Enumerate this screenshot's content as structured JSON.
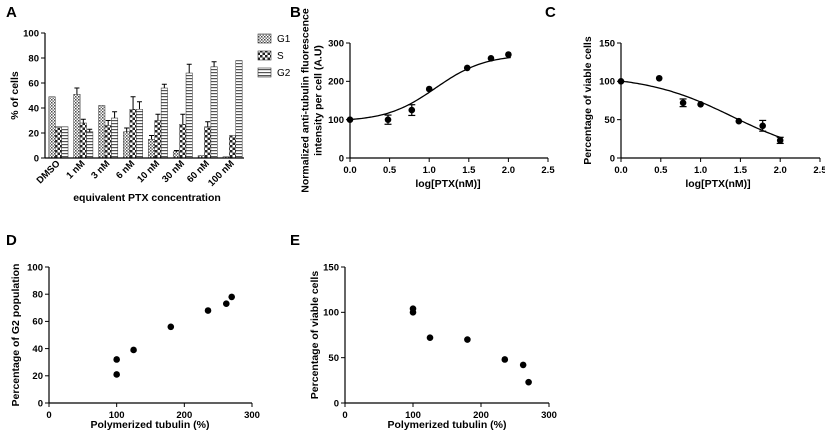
{
  "chart_data": [
    {
      "panel": "A",
      "type": "bar",
      "categories": [
        "DMSO",
        "1 nM",
        "3 nM",
        "6 nM",
        "10 nM",
        "30 nM",
        "60 nM",
        "100 nM"
      ],
      "series": [
        {
          "name": "G1",
          "values": [
            49,
            51,
            42,
            21,
            15,
            5,
            2,
            1
          ],
          "errors": [
            0,
            5,
            0,
            3,
            3,
            1,
            0,
            0
          ]
        },
        {
          "name": "S",
          "values": [
            25,
            28,
            26,
            39,
            30,
            27,
            25,
            18
          ],
          "errors": [
            0,
            3,
            4,
            10,
            5,
            8,
            4,
            0
          ]
        },
        {
          "name": "G2",
          "values": [
            25,
            21,
            32,
            39,
            56,
            68,
            73,
            78
          ],
          "errors": [
            0,
            2,
            5,
            6,
            3,
            7,
            4,
            0
          ]
        }
      ],
      "xlabel": "equivalent PTX concentration",
      "ylabel": "% of cells",
      "ylim": [
        0,
        100
      ],
      "yticks": [
        0,
        20,
        40,
        60,
        80,
        100
      ],
      "legend": "top-right"
    },
    {
      "panel": "B",
      "type": "scatter",
      "x": [
        0.0,
        0.48,
        0.78,
        1.0,
        1.48,
        1.78,
        2.0
      ],
      "y": [
        100,
        100,
        125,
        180,
        235,
        260,
        270
      ],
      "errors": [
        0,
        12,
        14,
        0,
        0,
        0,
        0
      ],
      "fit": "sigmoid",
      "fit_params": {
        "bottom": 95,
        "top": 270,
        "logEC50": 1.08,
        "hill": 1.4
      },
      "xlabel": "log[PTX(nM)]",
      "ylabel": [
        "Normalized anti-tubulin fluorescence",
        "intensity per cell  (A.U)"
      ],
      "xlim": [
        0,
        2.5
      ],
      "ylim": [
        0,
        300
      ],
      "xticks": [
        "0.0",
        "0.5",
        "1.0",
        "1.5",
        "2.0",
        "2.5"
      ],
      "yticks": [
        0,
        100,
        200,
        300
      ]
    },
    {
      "panel": "C",
      "type": "scatter",
      "x": [
        0.0,
        0.48,
        0.78,
        1.0,
        1.48,
        1.78,
        2.0
      ],
      "y": [
        100,
        104,
        72,
        70,
        48,
        42,
        23
      ],
      "errors": [
        0,
        0,
        5,
        0,
        0,
        7,
        4
      ],
      "fit": "sigmoid",
      "fit_params": {
        "bottom": 0,
        "top": 108,
        "logEC50": 1.4,
        "hill": -0.8
      },
      "xlabel": "log[PTX(nM)]",
      "ylabel": "Percentage of viable cells",
      "xlim": [
        0,
        2.5
      ],
      "ylim": [
        0,
        150
      ],
      "xticks": [
        "0.0",
        "0.5",
        "1.0",
        "1.5",
        "2.0",
        "2.5"
      ],
      "yticks": [
        0,
        50,
        100,
        150
      ]
    },
    {
      "panel": "D",
      "type": "scatter",
      "x": [
        100,
        100,
        125,
        180,
        235,
        262,
        270
      ],
      "y": [
        32,
        21,
        39,
        56,
        68,
        73,
        78
      ],
      "xlabel": "Polymerized tubulin (%)",
      "ylabel": "Percentage of G2 population",
      "xlim": [
        0,
        300
      ],
      "ylim": [
        0,
        100
      ],
      "xticks": [
        0,
        100,
        200,
        300
      ],
      "yticks": [
        0,
        20,
        40,
        60,
        80,
        100
      ]
    },
    {
      "panel": "E",
      "type": "scatter",
      "x": [
        100,
        100,
        125,
        180,
        235,
        262,
        270
      ],
      "y": [
        104,
        100,
        72,
        70,
        48,
        42,
        23
      ],
      "xlabel": "Polymerized tubulin (%)",
      "ylabel": "Percentage of viable cells",
      "xlim": [
        0,
        300
      ],
      "ylim": [
        0,
        150
      ],
      "xticks": [
        0,
        100,
        200,
        300
      ],
      "yticks": [
        0,
        50,
        100,
        150
      ]
    }
  ]
}
